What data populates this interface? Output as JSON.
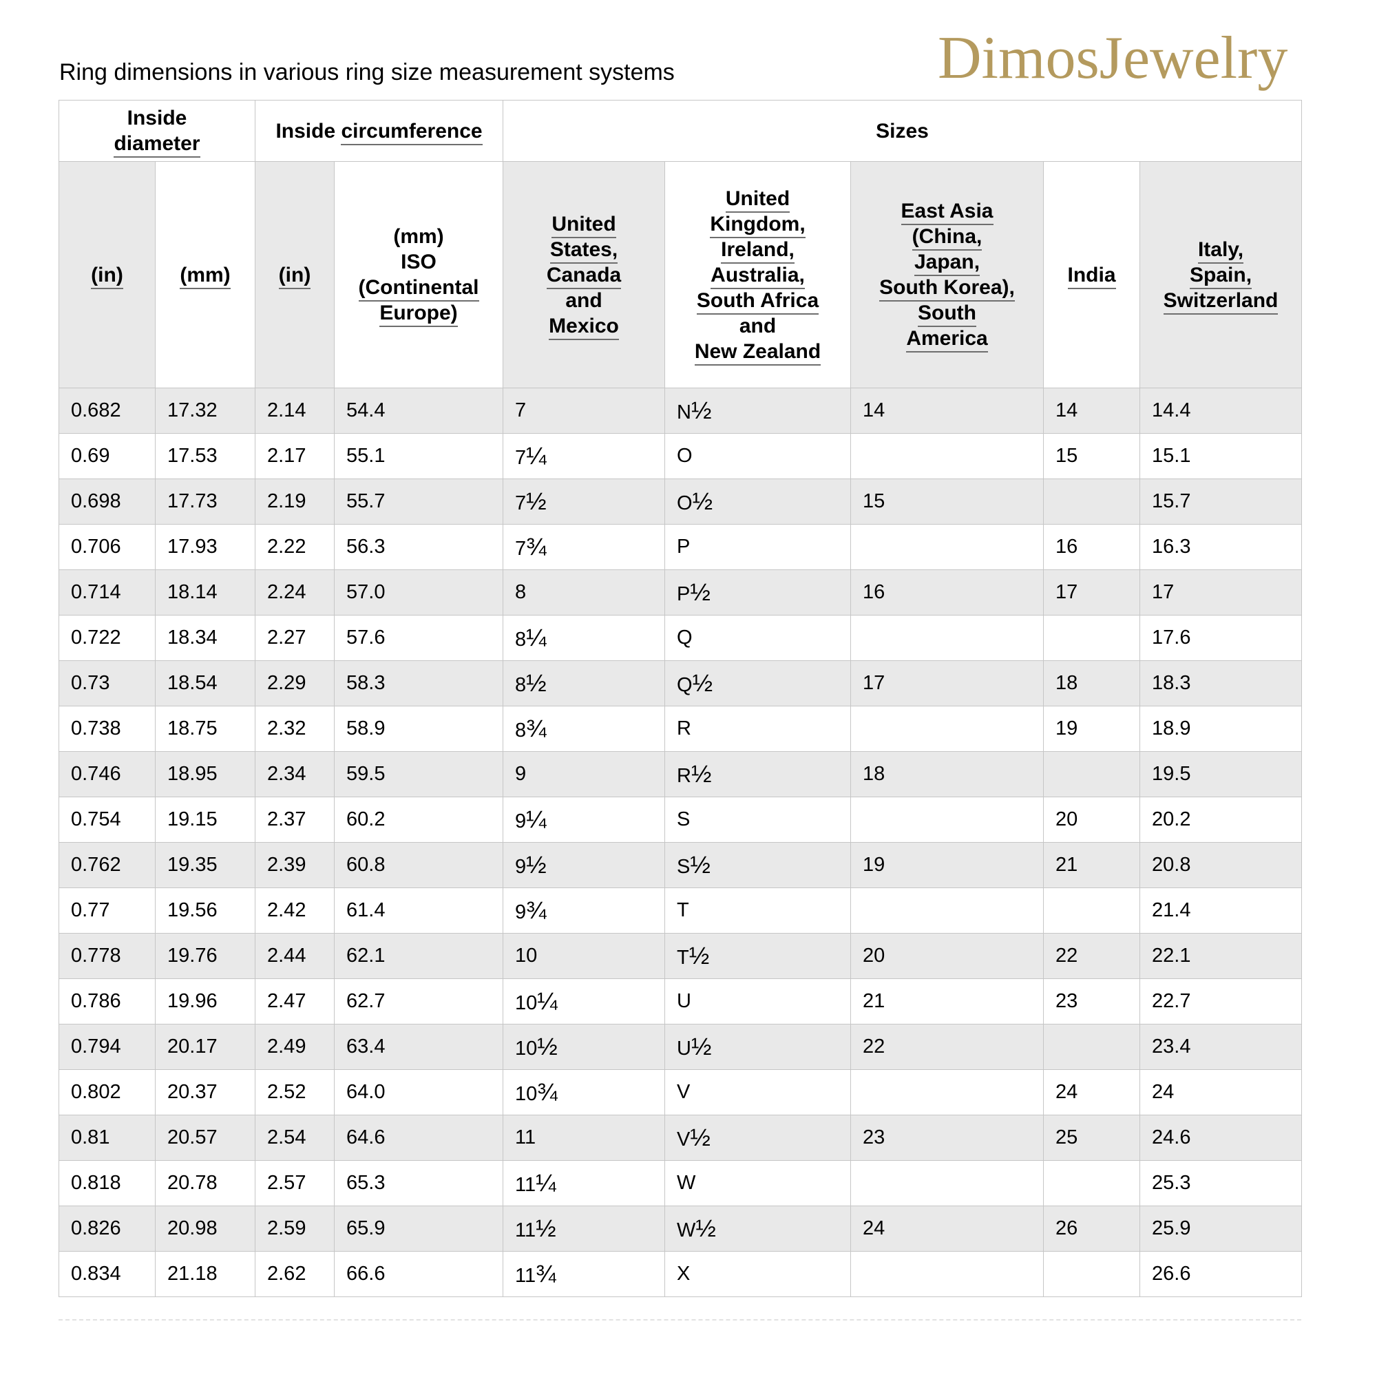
{
  "page": {
    "title": "Ring dimensions in various ring size measurement systems",
    "logo_text": "DimosJewelry"
  },
  "theme": {
    "brand_gold": "#b49a5e",
    "row_shade": "#e9e9e9",
    "border": "#c6c6c6",
    "background": "#ffffff",
    "text": "#000000"
  },
  "chart_data": {
    "type": "table",
    "title": "Ring dimensions in various ring size measurement systems",
    "group_headers": [
      {
        "label": "Inside diameter",
        "colspan": 2,
        "lines": [
          [
            {
              "t": "Inside",
              "u": false
            }
          ],
          [
            {
              "t": "diameter",
              "u": true
            }
          ]
        ]
      },
      {
        "label": "Inside circumference",
        "colspan": 2,
        "lines": [
          [
            {
              "t": "Inside ",
              "u": false
            },
            {
              "t": "circumference",
              "u": true
            }
          ]
        ]
      },
      {
        "label": "Sizes",
        "colspan": 5,
        "lines": [
          [
            {
              "t": "Sizes",
              "u": false
            }
          ]
        ]
      }
    ],
    "columns": [
      {
        "key": "inside_diameter_in",
        "label": "(in)",
        "shaded": true,
        "lines": [
          [
            {
              "t": "(in)",
              "u": true
            }
          ]
        ]
      },
      {
        "key": "inside_diameter_mm",
        "label": "(mm)",
        "shaded": false,
        "lines": [
          [
            {
              "t": "(mm)",
              "u": true
            }
          ]
        ]
      },
      {
        "key": "inside_circumference_in",
        "label": "(in)",
        "shaded": true,
        "lines": [
          [
            {
              "t": "(in)",
              "u": true
            }
          ]
        ]
      },
      {
        "key": "inside_circumference_mm_iso",
        "label": "(mm) ISO (Continental Europe)",
        "shaded": false,
        "lines": [
          [
            {
              "t": "(mm)",
              "u": false
            }
          ],
          [
            {
              "t": "ISO",
              "u": false
            }
          ],
          [
            {
              "t": "(Continental",
              "u": true
            }
          ],
          [
            {
              "t": "Europe)",
              "u": true
            }
          ]
        ]
      },
      {
        "key": "united_states_canada_mexico",
        "label": "United States, Canada and Mexico",
        "shaded": true,
        "lines": [
          [
            {
              "t": "United",
              "u": true
            }
          ],
          [
            {
              "t": "States,",
              "u": true
            }
          ],
          [
            {
              "t": "Canada",
              "u": true
            }
          ],
          [
            {
              "t": "and",
              "u": false
            }
          ],
          [
            {
              "t": "Mexico",
              "u": true
            }
          ]
        ]
      },
      {
        "key": "uk_ireland_australia_south_africa_new_zealand",
        "label": "United Kingdom, Ireland, Australia, South Africa and New Zealand",
        "shaded": false,
        "lines": [
          [
            {
              "t": "United",
              "u": true
            }
          ],
          [
            {
              "t": "Kingdom,",
              "u": true
            }
          ],
          [
            {
              "t": "Ireland,",
              "u": true
            }
          ],
          [
            {
              "t": "Australia,",
              "u": true
            }
          ],
          [
            {
              "t": "South Africa",
              "u": true
            }
          ],
          [
            {
              "t": "and",
              "u": false
            }
          ],
          [
            {
              "t": "New Zealand",
              "u": true
            }
          ]
        ]
      },
      {
        "key": "east_asia_south_america",
        "label": "East Asia (China, Japan, South Korea), South America",
        "shaded": true,
        "lines": [
          [
            {
              "t": "East Asia",
              "u": true
            }
          ],
          [
            {
              "t": "(China,",
              "u": true
            }
          ],
          [
            {
              "t": "Japan,",
              "u": true
            }
          ],
          [
            {
              "t": "South Korea),",
              "u": true
            }
          ],
          [
            {
              "t": "South",
              "u": true
            }
          ],
          [
            {
              "t": "America",
              "u": true
            }
          ]
        ]
      },
      {
        "key": "india",
        "label": "India",
        "shaded": false,
        "lines": [
          [
            {
              "t": "India",
              "u": true
            }
          ]
        ]
      },
      {
        "key": "italy_spain_switzerland",
        "label": "Italy, Spain, Switzerland",
        "shaded": true,
        "lines": [
          [
            {
              "t": "Italy,",
              "u": true
            }
          ],
          [
            {
              "t": "Spain,",
              "u": true
            }
          ],
          [
            {
              "t": "Switzerland",
              "u": true
            }
          ]
        ]
      }
    ],
    "rows": [
      [
        "0.682",
        "17.32",
        "2.14",
        "54.4",
        "7",
        "N½",
        "14",
        "14",
        "14.4"
      ],
      [
        "0.69",
        "17.53",
        "2.17",
        "55.1",
        "7¼",
        "O",
        "",
        "15",
        "15.1"
      ],
      [
        "0.698",
        "17.73",
        "2.19",
        "55.7",
        "7½",
        "O½",
        "15",
        "",
        "15.7"
      ],
      [
        "0.706",
        "17.93",
        "2.22",
        "56.3",
        "7¾",
        "P",
        "",
        "16",
        "16.3"
      ],
      [
        "0.714",
        "18.14",
        "2.24",
        "57.0",
        "8",
        "P½",
        "16",
        "17",
        "17"
      ],
      [
        "0.722",
        "18.34",
        "2.27",
        "57.6",
        "8¼",
        "Q",
        "",
        "",
        "17.6"
      ],
      [
        "0.73",
        "18.54",
        "2.29",
        "58.3",
        "8½",
        "Q½",
        "17",
        "18",
        "18.3"
      ],
      [
        "0.738",
        "18.75",
        "2.32",
        "58.9",
        "8¾",
        "R",
        "",
        "19",
        "18.9"
      ],
      [
        "0.746",
        "18.95",
        "2.34",
        "59.5",
        "9",
        "R½",
        "18",
        "",
        "19.5"
      ],
      [
        "0.754",
        "19.15",
        "2.37",
        "60.2",
        "9¼",
        "S",
        "",
        "20",
        "20.2"
      ],
      [
        "0.762",
        "19.35",
        "2.39",
        "60.8",
        "9½",
        "S½",
        "19",
        "21",
        "20.8"
      ],
      [
        "0.77",
        "19.56",
        "2.42",
        "61.4",
        "9¾",
        "T",
        "",
        "",
        "21.4"
      ],
      [
        "0.778",
        "19.76",
        "2.44",
        "62.1",
        "10",
        "T½",
        "20",
        "22",
        "22.1"
      ],
      [
        "0.786",
        "19.96",
        "2.47",
        "62.7",
        "10¼",
        "U",
        "21",
        "23",
        "22.7"
      ],
      [
        "0.794",
        "20.17",
        "2.49",
        "63.4",
        "10½",
        "U½",
        "22",
        "",
        "23.4"
      ],
      [
        "0.802",
        "20.37",
        "2.52",
        "64.0",
        "10¾",
        "V",
        "",
        "24",
        "24"
      ],
      [
        "0.81",
        "20.57",
        "2.54",
        "64.6",
        "11",
        "V½",
        "23",
        "25",
        "24.6"
      ],
      [
        "0.818",
        "20.78",
        "2.57",
        "65.3",
        "11¼",
        "W",
        "",
        "",
        "25.3"
      ],
      [
        "0.826",
        "20.98",
        "2.59",
        "65.9",
        "11½",
        "W½",
        "24",
        "26",
        "25.9"
      ],
      [
        "0.834",
        "21.18",
        "2.62",
        "66.6",
        "11¾",
        "X",
        "",
        "",
        "26.6"
      ]
    ]
  }
}
